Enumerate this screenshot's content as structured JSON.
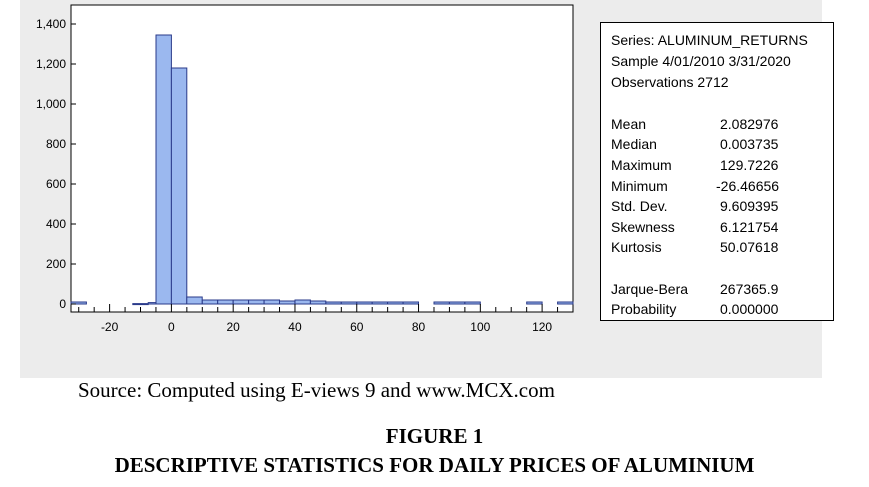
{
  "colors": {
    "bar_fill": "#9bb8ef",
    "bar_stroke": "#2a3a8a",
    "panel_bg": "#ececec"
  },
  "chart_data": {
    "type": "bar",
    "bin_width": 5,
    "bins": [
      {
        "x": -30,
        "count": 10
      },
      {
        "x": -25,
        "count": 0
      },
      {
        "x": -20,
        "count": 0
      },
      {
        "x": -15,
        "count": 0
      },
      {
        "x": -10,
        "count": 2
      },
      {
        "x": -5,
        "count": 7
      },
      {
        "x": -2.5,
        "count": 1345
      },
      {
        "x": 2.5,
        "count": 1180
      },
      {
        "x": 7.5,
        "count": 35
      },
      {
        "x": 12.5,
        "count": 20
      },
      {
        "x": 17.5,
        "count": 20
      },
      {
        "x": 22.5,
        "count": 20
      },
      {
        "x": 27.5,
        "count": 20
      },
      {
        "x": 32.5,
        "count": 20
      },
      {
        "x": 37.5,
        "count": 15
      },
      {
        "x": 42.5,
        "count": 20
      },
      {
        "x": 47.5,
        "count": 15
      },
      {
        "x": 52.5,
        "count": 10
      },
      {
        "x": 57.5,
        "count": 10
      },
      {
        "x": 62.5,
        "count": 10
      },
      {
        "x": 67.5,
        "count": 10
      },
      {
        "x": 72.5,
        "count": 10
      },
      {
        "x": 77.5,
        "count": 10
      },
      {
        "x": 87.5,
        "count": 10
      },
      {
        "x": 92.5,
        "count": 10
      },
      {
        "x": 97.5,
        "count": 10
      },
      {
        "x": 117.5,
        "count": 10
      },
      {
        "x": 127.5,
        "count": 10
      }
    ],
    "xlim": [
      -32.5,
      130
    ],
    "ylim": [
      0,
      1400
    ],
    "x_ticks": [
      -20,
      0,
      20,
      40,
      60,
      80,
      100,
      120
    ],
    "y_ticks": [
      0,
      200,
      400,
      600,
      800,
      1000,
      1200,
      1400
    ],
    "y_tick_labels": [
      "0",
      "200",
      "400",
      "600",
      "800",
      "1,000",
      "1,200",
      "1,400"
    ],
    "grid": false
  },
  "stats": {
    "series": "Series: ALUMINUM_RETURNS",
    "sample": "Sample 4/01/2010 3/31/2020",
    "observations": "Observations 2712",
    "rows": [
      {
        "label": "Mean",
        "value": "2.082976"
      },
      {
        "label": "Median",
        "value": "0.003735"
      },
      {
        "label": "Maximum",
        "value": "129.7226"
      },
      {
        "label": "Minimum",
        "value": "-26.46656"
      },
      {
        "label": "Std. Dev.",
        "value": "9.609395"
      },
      {
        "label": "Skewness",
        "value": "6.121754"
      },
      {
        "label": "Kurtosis",
        "value": "50.07618"
      }
    ],
    "jb_rows": [
      {
        "label": "Jarque-Bera",
        "value": "267365.9"
      },
      {
        "label": "Probability",
        "value": "0.000000"
      }
    ]
  },
  "source": "Source: Computed using E-views 9 and www.MCX.com",
  "figure_number": "FIGURE 1",
  "figure_caption": "DESCRIPTIVE STATISTICS FOR DAILY PRICES OF ALUMINIUM"
}
